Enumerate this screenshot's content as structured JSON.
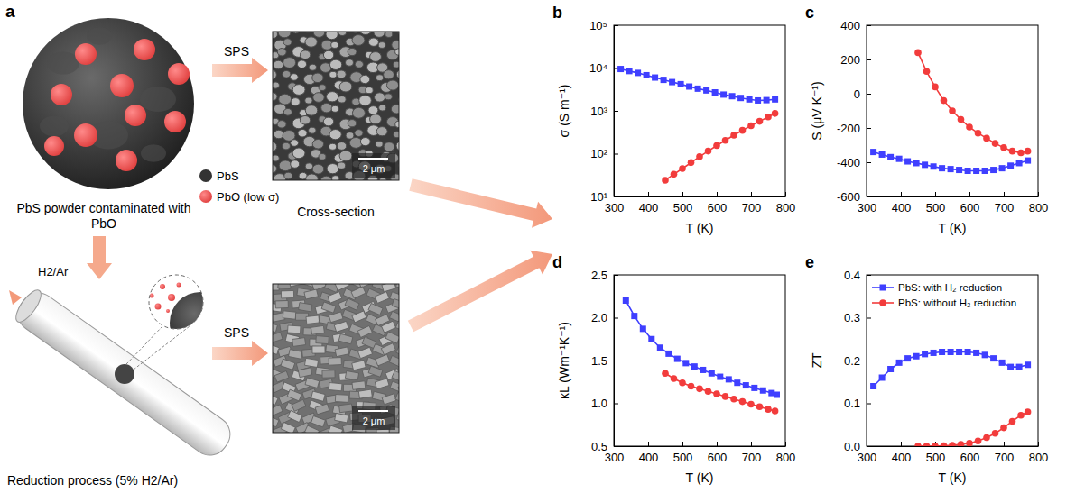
{
  "figure": {
    "panel_a": {
      "label": "a",
      "caption": "PbS powder contaminated with PbO",
      "key": [
        "PbS",
        "PbO (low σ)"
      ],
      "arrows": [
        "SPS",
        "SPS"
      ],
      "section_label": "Cross-section",
      "scale_bars": [
        "2 μm",
        "2 μm"
      ],
      "gas_label": "H2/Ar",
      "process_label": "Reduction process (5% H2/Ar)"
    }
  },
  "chart_data": [
    {
      "type": "line",
      "panel": "b",
      "x_label": "T (K)",
      "y_label": "σ (S m⁻¹)",
      "xlim": [
        300,
        800
      ],
      "xticks": [
        300,
        400,
        500,
        600,
        700,
        800
      ],
      "ylim": [
        10,
        100000
      ],
      "log": "y",
      "yticks": [
        {
          "value": 10,
          "label": "10¹"
        },
        {
          "value": 100,
          "label": "10²"
        },
        {
          "value": 1000,
          "label": "10³"
        },
        {
          "value": 10000,
          "label": "10⁴"
        },
        {
          "value": 100000,
          "label": "10⁵"
        }
      ],
      "series": [
        {
          "color": "#3f3fff",
          "marker": "square",
          "x": [
            320,
            345,
            370,
            395,
            420,
            445,
            470,
            495,
            520,
            545,
            570,
            595,
            620,
            645,
            670,
            695,
            720,
            745,
            770
          ],
          "values": [
            9500,
            8500,
            7700,
            6800,
            6000,
            5300,
            4700,
            4200,
            3700,
            3300,
            3000,
            2700,
            2400,
            2200,
            2000,
            1850,
            1750,
            1780,
            1850
          ]
        },
        {
          "color": "#f23c3c",
          "marker": "circle",
          "x": [
            450,
            475,
            500,
            525,
            550,
            575,
            600,
            625,
            650,
            675,
            700,
            725,
            750,
            770
          ],
          "values": [
            24,
            33,
            45,
            62,
            85,
            115,
            155,
            205,
            270,
            350,
            450,
            570,
            720,
            870
          ]
        }
      ]
    },
    {
      "type": "line",
      "panel": "c",
      "x_label": "T (K)",
      "y_label": "S (μV K⁻¹)",
      "xlim": [
        300,
        800
      ],
      "xticks": [
        300,
        400,
        500,
        600,
        700,
        800
      ],
      "ylim": [
        -600,
        400
      ],
      "yticks": [
        -600,
        -400,
        -200,
        0,
        200,
        400
      ],
      "series": [
        {
          "color": "#3f3fff",
          "marker": "square",
          "x": [
            320,
            345,
            370,
            395,
            420,
            445,
            470,
            495,
            520,
            545,
            570,
            595,
            620,
            645,
            670,
            695,
            720,
            745,
            770
          ],
          "values": [
            -340,
            -355,
            -370,
            -380,
            -395,
            -405,
            -415,
            -425,
            -435,
            -440,
            -445,
            -450,
            -450,
            -450,
            -445,
            -435,
            -420,
            -405,
            -390
          ]
        },
        {
          "color": "#f23c3c",
          "marker": "circle",
          "x": [
            450,
            475,
            500,
            525,
            550,
            575,
            600,
            625,
            650,
            675,
            700,
            725,
            750,
            770
          ],
          "values": [
            240,
            130,
            40,
            -40,
            -100,
            -150,
            -195,
            -230,
            -260,
            -290,
            -315,
            -335,
            -345,
            -335
          ]
        }
      ]
    },
    {
      "type": "line",
      "panel": "d",
      "x_label": "T (K)",
      "y_label": "κL (Wm⁻¹K⁻¹)",
      "xlim": [
        300,
        800
      ],
      "xticks": [
        300,
        400,
        500,
        600,
        700,
        800
      ],
      "ylim": [
        0.5,
        2.5
      ],
      "yticks": [
        0.5,
        {
          "value": 1.0,
          "label": "1.0"
        },
        1.5,
        {
          "value": 2.0,
          "label": "2.0"
        },
        2.5
      ],
      "series": [
        {
          "color": "#3f3fff",
          "marker": "square",
          "x": [
            335,
            360,
            385,
            410,
            435,
            460,
            485,
            510,
            535,
            560,
            585,
            610,
            635,
            660,
            685,
            710,
            735,
            760,
            775
          ],
          "values": [
            2.2,
            2.02,
            1.87,
            1.75,
            1.65,
            1.58,
            1.52,
            1.47,
            1.43,
            1.39,
            1.35,
            1.31,
            1.28,
            1.24,
            1.21,
            1.18,
            1.15,
            1.12,
            1.1
          ]
        },
        {
          "color": "#f23c3c",
          "marker": "circle",
          "x": [
            450,
            475,
            500,
            525,
            550,
            575,
            600,
            625,
            650,
            675,
            700,
            725,
            750,
            770
          ],
          "values": [
            1.35,
            1.29,
            1.24,
            1.2,
            1.17,
            1.14,
            1.11,
            1.08,
            1.05,
            1.02,
            0.99,
            0.96,
            0.93,
            0.91
          ]
        }
      ]
    },
    {
      "type": "line",
      "panel": "e",
      "x_label": "T (K)",
      "y_label": "ZT",
      "xlim": [
        300,
        800
      ],
      "xticks": [
        300,
        400,
        500,
        600,
        700,
        800
      ],
      "ylim": [
        0,
        0.4
      ],
      "yticks": [
        {
          "value": 0,
          "label": "0.0"
        },
        0.1,
        0.2,
        0.3,
        0.4
      ],
      "legend": "top",
      "series": [
        {
          "name": "PbS: with H₂ reduction",
          "color": "#3f3fff",
          "marker": "square",
          "x": [
            320,
            345,
            370,
            395,
            420,
            445,
            470,
            495,
            520,
            545,
            570,
            595,
            620,
            645,
            670,
            695,
            720,
            745,
            770
          ],
          "values": [
            0.14,
            0.16,
            0.18,
            0.195,
            0.205,
            0.21,
            0.215,
            0.218,
            0.22,
            0.22,
            0.22,
            0.22,
            0.218,
            0.213,
            0.205,
            0.195,
            0.185,
            0.185,
            0.19
          ]
        },
        {
          "name": "PbS: without H₂ reduction",
          "color": "#f23c3c",
          "marker": "circle",
          "x": [
            450,
            475,
            500,
            525,
            550,
            575,
            600,
            625,
            650,
            675,
            700,
            725,
            750,
            770
          ],
          "values": [
            0,
            0,
            0,
            0.001,
            0.002,
            0.004,
            0.007,
            0.012,
            0.02,
            0.03,
            0.043,
            0.058,
            0.072,
            0.08
          ]
        }
      ]
    }
  ]
}
